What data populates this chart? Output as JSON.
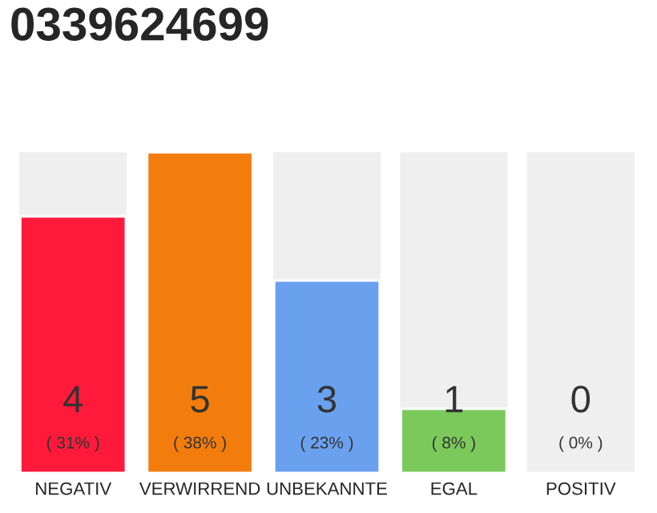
{
  "chart_data": {
    "type": "bar",
    "title": "0339624699",
    "categories": [
      "NEGATIV",
      "VERWIRREND",
      "UNBEKANNTE",
      "EGAL",
      "POSITIV"
    ],
    "values": [
      4,
      5,
      3,
      1,
      0
    ],
    "colors": [
      "#ff1a3c",
      "#f27d0c",
      "#6aa1ef",
      "#7bc95a",
      null
    ],
    "value_labels": [
      "4\n( 31% )",
      "5\n( 38% )",
      "3\n( 23% )",
      "1\n( 8% )",
      "0\n( 0% )"
    ],
    "ylim": [
      0,
      5
    ],
    "tick_labels": "x",
    "grid": false,
    "legend": false
  }
}
